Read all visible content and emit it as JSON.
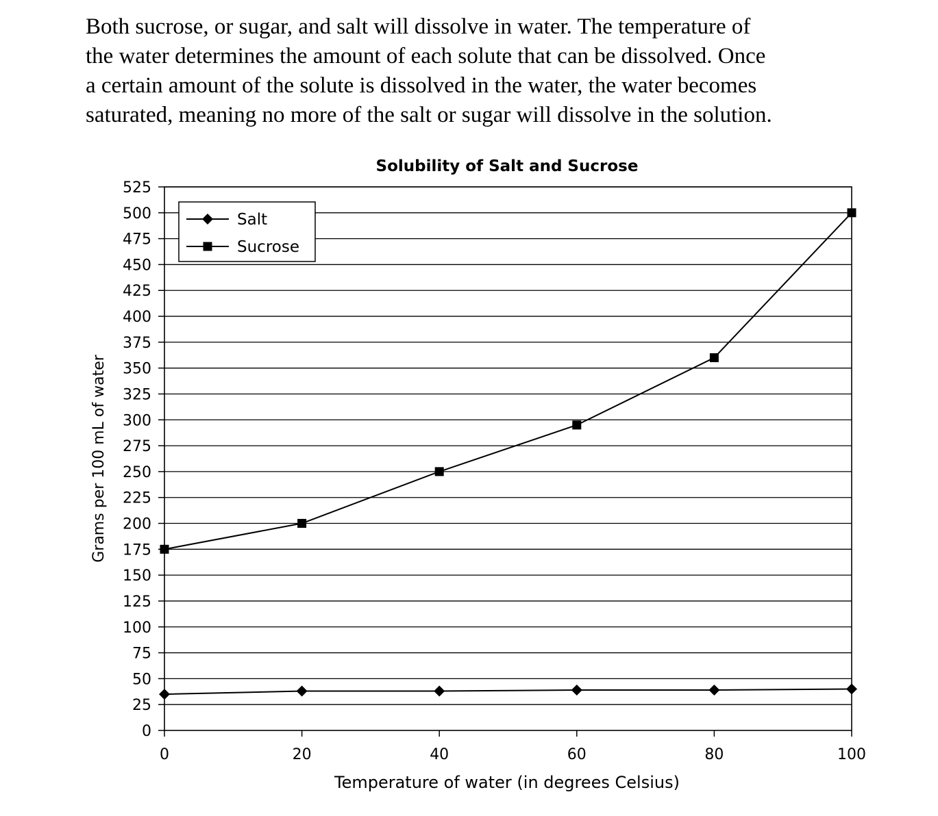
{
  "intro": {
    "lines": [
      "Both sucrose, or sugar, and salt will dissolve in water. The temperature of",
      "the water determines the amount of each solute that can be dissolved. Once",
      "a certain amount of the solute is dissolved in the water, the water becomes",
      "saturated, meaning no more of the salt or sugar will dissolve in the solution."
    ]
  },
  "chart_data": {
    "type": "line",
    "title": "Solubility of Salt and Sucrose",
    "xlabel": "Temperature of water (in degrees Celsius)",
    "ylabel": "Grams per 100 mL of water",
    "x": [
      0,
      20,
      40,
      60,
      80,
      100
    ],
    "xticks": [
      "0",
      "20",
      "40",
      "60",
      "80",
      "100"
    ],
    "yticks": [
      "0",
      "25",
      "50",
      "75",
      "100",
      "125",
      "150",
      "175",
      "200",
      "225",
      "250",
      "275",
      "300",
      "325",
      "350",
      "375",
      "400",
      "425",
      "450",
      "475",
      "500",
      "525"
    ],
    "xlim": [
      0,
      100
    ],
    "ylim": [
      0,
      525
    ],
    "grid": "horizontal",
    "legend_position": "top-left",
    "series": [
      {
        "name": "Salt",
        "marker": "diamond",
        "values": [
          35,
          38,
          38,
          39,
          39,
          40
        ]
      },
      {
        "name": "Sucrose",
        "marker": "square",
        "values": [
          175,
          200,
          250,
          295,
          360,
          500
        ]
      }
    ],
    "colors": {
      "line": "#000000",
      "grid": "#000000",
      "background": "#ffffff"
    }
  }
}
